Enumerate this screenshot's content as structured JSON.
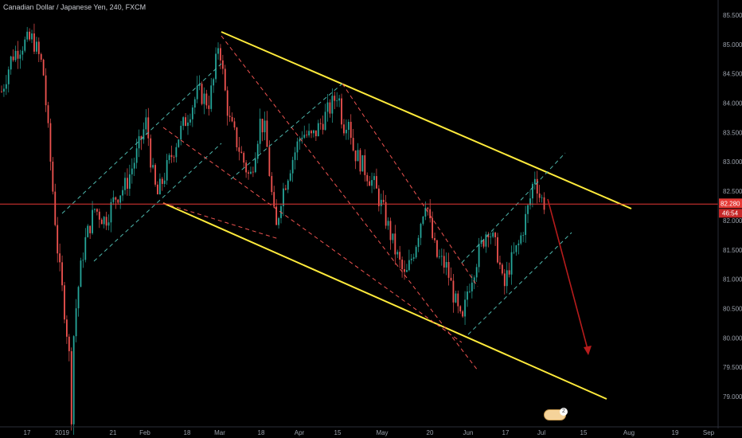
{
  "header": {
    "title": "Canadian Dollar / Japanese Yen, 240, FXCM"
  },
  "colors": {
    "background": "#000000",
    "up_candle": "#26a69a",
    "down_candle": "#ef5350",
    "channel": "#ffeb3b",
    "dashed_teal": "#4db6ac",
    "dashed_red": "#ef5350",
    "price_line": "#e53935",
    "arrow": "#b71c1c"
  },
  "chart_data": {
    "type": "candlestick",
    "title": "Canadian Dollar / Japanese Yen, 240, FXCM",
    "ylim": [
      78.6,
      85.6
    ],
    "y_ticks": [
      79.0,
      79.5,
      80.0,
      80.5,
      81.0,
      81.5,
      82.0,
      82.5,
      83.0,
      83.5,
      84.0,
      84.5,
      85.0,
      85.5
    ],
    "y_tick_labels": [
      "79.000",
      "79.500",
      "80.000",
      "80.500",
      "81.000",
      "81.500",
      "82.000",
      "82.500",
      "83.000",
      "83.500",
      "84.000",
      "84.500",
      "85.000",
      "85.500"
    ],
    "x_tick_labels": [
      "17",
      "2019",
      "21",
      "Feb",
      "18",
      "Mar",
      "18",
      "Apr",
      "15",
      "May",
      "20",
      "Jun",
      "17",
      "Jul",
      "15",
      "Aug",
      "19",
      "Sep"
    ],
    "last_price": "82.280",
    "last_price_value": 82.28,
    "countdown": "46:54",
    "badge_count": "2",
    "price_path": [
      [
        0,
        84.2
      ],
      [
        2,
        84.8
      ],
      [
        4,
        85.0
      ],
      [
        6,
        85.1
      ],
      [
        8,
        84.6
      ],
      [
        9,
        83.5
      ],
      [
        10,
        82.4
      ],
      [
        11,
        81.3
      ],
      [
        12,
        80.6
      ],
      [
        13,
        79.8
      ],
      [
        13.5,
        78.7
      ],
      [
        14,
        80.2
      ],
      [
        15,
        81.0
      ],
      [
        16,
        81.6
      ],
      [
        18,
        82.2
      ],
      [
        20,
        82.0
      ],
      [
        22,
        82.4
      ],
      [
        24,
        82.6
      ],
      [
        26,
        83.1
      ],
      [
        28,
        83.7
      ],
      [
        29,
        82.9
      ],
      [
        30,
        82.4
      ],
      [
        32,
        82.9
      ],
      [
        34,
        83.4
      ],
      [
        36,
        83.8
      ],
      [
        38,
        84.2
      ],
      [
        40,
        84.0
      ],
      [
        41,
        84.4
      ],
      [
        42,
        85.1
      ],
      [
        43,
        84.3
      ],
      [
        44,
        83.7
      ],
      [
        46,
        83.2
      ],
      [
        48,
        82.7
      ],
      [
        49,
        83.2
      ],
      [
        50,
        83.7
      ],
      [
        51,
        83.5
      ],
      [
        52,
        82.6
      ],
      [
        53,
        81.8
      ],
      [
        54,
        82.4
      ],
      [
        56,
        83.0
      ],
      [
        58,
        83.5
      ],
      [
        60,
        83.4
      ],
      [
        62,
        83.7
      ],
      [
        64,
        84.0
      ],
      [
        65,
        84.2
      ],
      [
        66,
        83.6
      ],
      [
        67,
        83.8
      ],
      [
        68,
        83.2
      ],
      [
        70,
        82.9
      ],
      [
        72,
        82.6
      ],
      [
        74,
        82.1
      ],
      [
        76,
        81.5
      ],
      [
        78,
        81.0
      ],
      [
        80,
        81.6
      ],
      [
        82,
        82.4
      ],
      [
        83,
        81.8
      ],
      [
        84,
        81.4
      ],
      [
        86,
        81.2
      ],
      [
        88,
        80.5
      ],
      [
        89,
        80.2
      ],
      [
        90,
        80.8
      ],
      [
        92,
        81.4
      ],
      [
        94,
        81.9
      ],
      [
        96,
        81.4
      ],
      [
        97,
        80.8
      ],
      [
        98,
        81.2
      ],
      [
        100,
        81.6
      ],
      [
        102,
        82.3
      ],
      [
        103,
        82.8
      ],
      [
        104,
        82.4
      ],
      [
        105,
        82.28
      ]
    ],
    "x_range": [
      0,
      140
    ],
    "legend": "none",
    "grid": false
  }
}
